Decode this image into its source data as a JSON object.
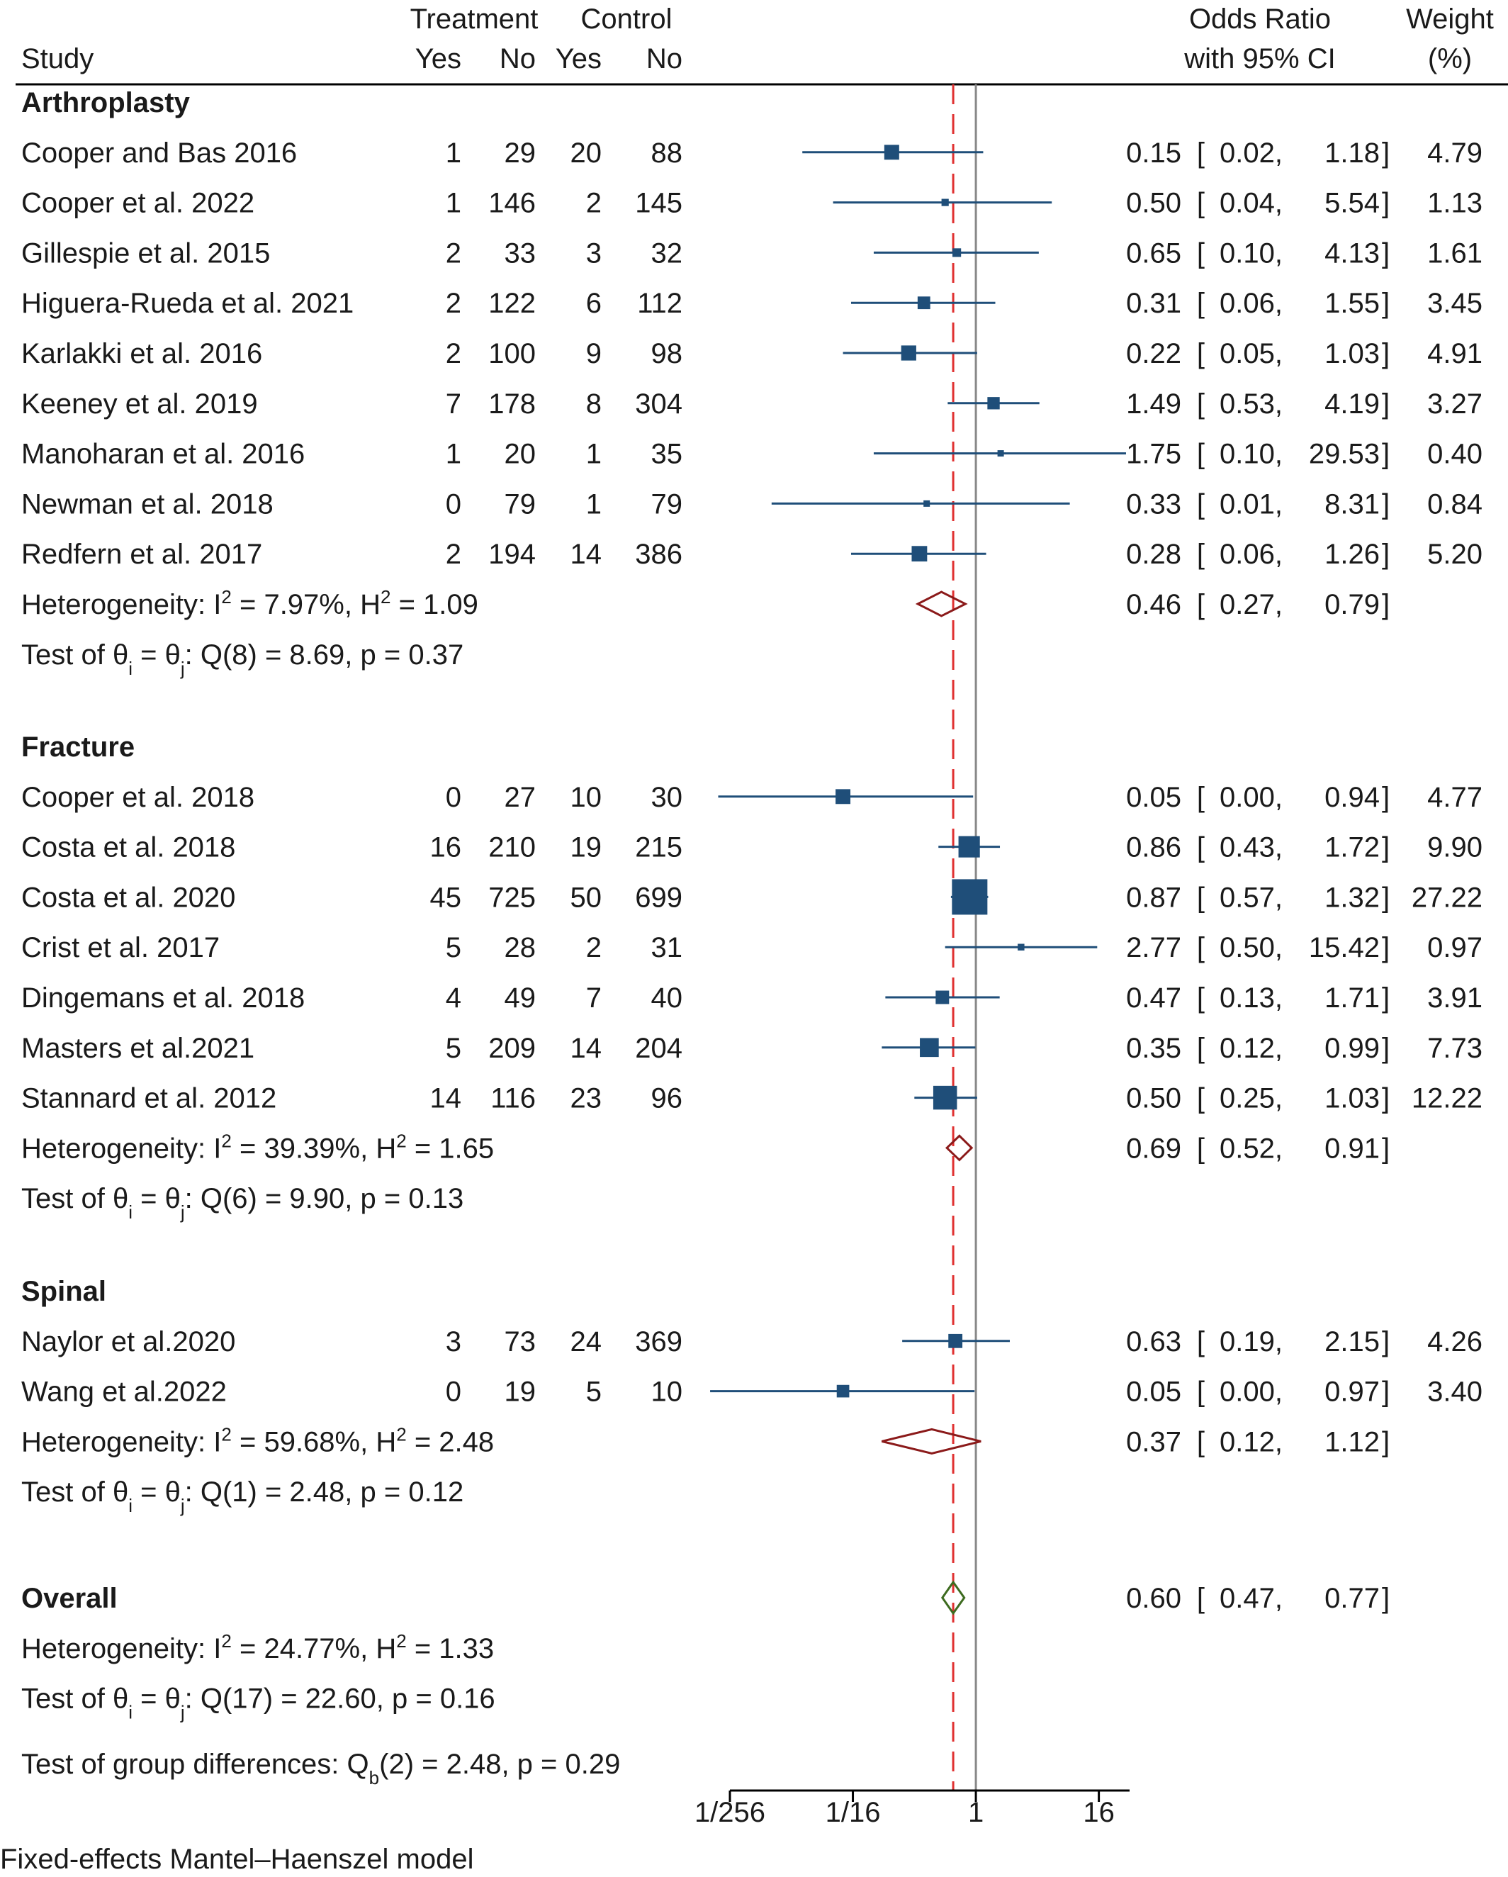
{
  "header": {
    "study": "Study",
    "treatment": "Treatment",
    "control": "Control",
    "yes": "Yes",
    "no": "No",
    "or_line1": "Odds Ratio",
    "or_line2": "with 95% CI",
    "weight_line1": "Weight",
    "weight_line2": "(%)"
  },
  "chart_data": {
    "type": "forest",
    "scale": "log2",
    "xlim": [
      0.00390625,
      32
    ],
    "x_ticks": [
      {
        "value": 0.00390625,
        "label": "1/256"
      },
      {
        "value": 0.0625,
        "label": "1/16"
      },
      {
        "value": 1,
        "label": "1"
      },
      {
        "value": 16,
        "label": "16"
      }
    ],
    "reference_line": 1,
    "overall_line": 0.6,
    "groups": [
      {
        "name": "Arthroplasty",
        "studies": [
          {
            "study": "Cooper and Bas 2016",
            "t_yes": "1",
            "t_no": "29",
            "c_yes": "20",
            "c_no": "88",
            "or": 0.15,
            "lo": 0.02,
            "hi": 1.18,
            "or_text": "0.15",
            "lo_text": "0.02",
            "hi_text": "1.18",
            "weight": "4.79"
          },
          {
            "study": "Cooper et al. 2022",
            "t_yes": "1",
            "t_no": "146",
            "c_yes": "2",
            "c_no": "145",
            "or": 0.5,
            "lo": 0.04,
            "hi": 5.54,
            "or_text": "0.50",
            "lo_text": "0.04",
            "hi_text": "5.54",
            "weight": "1.13"
          },
          {
            "study": "Gillespie et al. 2015",
            "t_yes": "2",
            "t_no": "33",
            "c_yes": "3",
            "c_no": "32",
            "or": 0.65,
            "lo": 0.1,
            "hi": 4.13,
            "or_text": "0.65",
            "lo_text": "0.10",
            "hi_text": "4.13",
            "weight": "1.61"
          },
          {
            "study": "Higuera-Rueda et al. 2021",
            "t_yes": "2",
            "t_no": "122",
            "c_yes": "6",
            "c_no": "112",
            "or": 0.31,
            "lo": 0.06,
            "hi": 1.55,
            "or_text": "0.31",
            "lo_text": "0.06",
            "hi_text": "1.55",
            "weight": "3.45"
          },
          {
            "study": "Karlakki et al. 2016",
            "t_yes": "2",
            "t_no": "100",
            "c_yes": "9",
            "c_no": "98",
            "or": 0.22,
            "lo": 0.05,
            "hi": 1.03,
            "or_text": "0.22",
            "lo_text": "0.05",
            "hi_text": "1.03",
            "weight": "4.91"
          },
          {
            "study": "Keeney et al. 2019",
            "t_yes": "7",
            "t_no": "178",
            "c_yes": "8",
            "c_no": "304",
            "or": 1.49,
            "lo": 0.53,
            "hi": 4.19,
            "or_text": "1.49",
            "lo_text": "0.53",
            "hi_text": "4.19",
            "weight": "3.27"
          },
          {
            "study": "Manoharan et al. 2016",
            "t_yes": "1",
            "t_no": "20",
            "c_yes": "1",
            "c_no": "35",
            "or": 1.75,
            "lo": 0.1,
            "hi": 29.53,
            "or_text": "1.75",
            "lo_text": "0.10",
            "hi_text": "29.53",
            "weight": "0.40"
          },
          {
            "study": "Newman et al. 2018",
            "t_yes": "0",
            "t_no": "79",
            "c_yes": "1",
            "c_no": "79",
            "or": 0.33,
            "lo": 0.01,
            "hi": 8.31,
            "or_text": "0.33",
            "lo_text": "0.01",
            "hi_text": "8.31",
            "weight": "0.84"
          },
          {
            "study": "Redfern et al. 2017",
            "t_yes": "2",
            "t_no": "194",
            "c_yes": "14",
            "c_no": "386",
            "or": 0.28,
            "lo": 0.06,
            "hi": 1.26,
            "or_text": "0.28",
            "lo_text": "0.06",
            "hi_text": "1.26",
            "weight": "5.20"
          }
        ],
        "summary": {
          "or": 0.46,
          "lo": 0.27,
          "hi": 0.79,
          "or_text": "0.46",
          "lo_text": "0.27",
          "hi_text": "0.79",
          "color": "#8b1a1a"
        },
        "heterogeneity": {
          "prefix": "Heterogeneity: I",
          "i2": " = 7.97%, H",
          "h2": " = 1.09"
        },
        "test": {
          "prefix": "Test of θ",
          "mid": " = θ",
          "rest": ": Q(8) = 8.69, p = 0.37"
        }
      },
      {
        "name": "Fracture",
        "studies": [
          {
            "study": "Cooper et al. 2018",
            "t_yes": "0",
            "t_no": "27",
            "c_yes": "10",
            "c_no": "30",
            "or": 0.05,
            "lo": 0.003,
            "hi": 0.94,
            "or_text": "0.05",
            "lo_text": "0.00",
            "hi_text": "0.94",
            "weight": "4.77"
          },
          {
            "study": "Costa et al. 2018",
            "t_yes": "16",
            "t_no": "210",
            "c_yes": "19",
            "c_no": "215",
            "or": 0.86,
            "lo": 0.43,
            "hi": 1.72,
            "or_text": "0.86",
            "lo_text": "0.43",
            "hi_text": "1.72",
            "weight": "9.90"
          },
          {
            "study": "Costa et al. 2020",
            "t_yes": "45",
            "t_no": "725",
            "c_yes": "50",
            "c_no": "699",
            "or": 0.87,
            "lo": 0.57,
            "hi": 1.32,
            "or_text": "0.87",
            "lo_text": "0.57",
            "hi_text": "1.32",
            "weight": "27.22"
          },
          {
            "study": "Crist et al. 2017",
            "t_yes": "5",
            "t_no": "28",
            "c_yes": "2",
            "c_no": "31",
            "or": 2.77,
            "lo": 0.5,
            "hi": 15.42,
            "or_text": "2.77",
            "lo_text": "0.50",
            "hi_text": "15.42",
            "weight": "0.97"
          },
          {
            "study": "Dingemans et al. 2018",
            "t_yes": "4",
            "t_no": "49",
            "c_yes": "7",
            "c_no": "40",
            "or": 0.47,
            "lo": 0.13,
            "hi": 1.71,
            "or_text": "0.47",
            "lo_text": "0.13",
            "hi_text": "1.71",
            "weight": "3.91"
          },
          {
            "study": "Masters et al.2021",
            "t_yes": "5",
            "t_no": "209",
            "c_yes": "14",
            "c_no": "204",
            "or": 0.35,
            "lo": 0.12,
            "hi": 0.99,
            "or_text": "0.35",
            "lo_text": "0.12",
            "hi_text": "0.99",
            "weight": "7.73"
          },
          {
            "study": "Stannard et al. 2012",
            "t_yes": "14",
            "t_no": "116",
            "c_yes": "23",
            "c_no": "96",
            "or": 0.5,
            "lo": 0.25,
            "hi": 1.03,
            "or_text": "0.50",
            "lo_text": "0.25",
            "hi_text": "1.03",
            "weight": "12.22"
          }
        ],
        "summary": {
          "or": 0.69,
          "lo": 0.52,
          "hi": 0.91,
          "or_text": "0.69",
          "lo_text": "0.52",
          "hi_text": "0.91",
          "color": "#8b1a1a"
        },
        "heterogeneity": {
          "prefix": "Heterogeneity: I",
          "i2": " = 39.39%, H",
          "h2": " = 1.65"
        },
        "test": {
          "prefix": "Test of θ",
          "mid": " = θ",
          "rest": ": Q(6) = 9.90, p = 0.13"
        }
      },
      {
        "name": "Spinal",
        "studies": [
          {
            "study": "Naylor et al.2020",
            "t_yes": "3",
            "t_no": "73",
            "c_yes": "24",
            "c_no": "369",
            "or": 0.63,
            "lo": 0.19,
            "hi": 2.15,
            "or_text": "0.63",
            "lo_text": "0.19",
            "hi_text": "2.15",
            "weight": "4.26"
          },
          {
            "study": "Wang et al.2022",
            "t_yes": "0",
            "t_no": "19",
            "c_yes": "5",
            "c_no": "10",
            "or": 0.05,
            "lo": 0.0025,
            "hi": 0.97,
            "or_text": "0.05",
            "lo_text": "0.00",
            "hi_text": "0.97",
            "weight": "3.40"
          }
        ],
        "summary": {
          "or": 0.37,
          "lo": 0.12,
          "hi": 1.12,
          "or_text": "0.37",
          "lo_text": "0.12",
          "hi_text": "1.12",
          "color": "#8b1a1a"
        },
        "heterogeneity": {
          "prefix": "Heterogeneity: I",
          "i2": " = 59.68%, H",
          "h2": " = 2.48"
        },
        "test": {
          "prefix": "Test of θ",
          "mid": " = θ",
          "rest": ": Q(1) = 2.48, p = 0.12"
        }
      }
    ],
    "overall": {
      "label": "Overall",
      "or": 0.6,
      "lo": 0.47,
      "hi": 0.77,
      "or_text": "0.60",
      "lo_text": "0.47",
      "hi_text": "0.77",
      "color": "#3d6b1f",
      "heterogeneity": {
        "prefix": "Heterogeneity: I",
        "i2": " = 24.77%, H",
        "h2": " = 1.33"
      },
      "test": {
        "prefix": "Test of θ",
        "mid": " = θ",
        "rest": ": Q(17) = 22.60, p = 0.16"
      },
      "group_test": {
        "prefix": "Test of group differences: Q",
        "sub": "b",
        "rest": "(2) = 2.48, p = 0.29"
      }
    },
    "colors": {
      "marker": "#1f4e79",
      "ci_line": "#1f4e79",
      "overall_line": "#e03030",
      "reference_line": "#888888"
    },
    "sub_labels": {
      "i": "i",
      "j": "j",
      "sup2": "2"
    }
  },
  "footer": "Fixed-effects Mantel–Haenszel model"
}
